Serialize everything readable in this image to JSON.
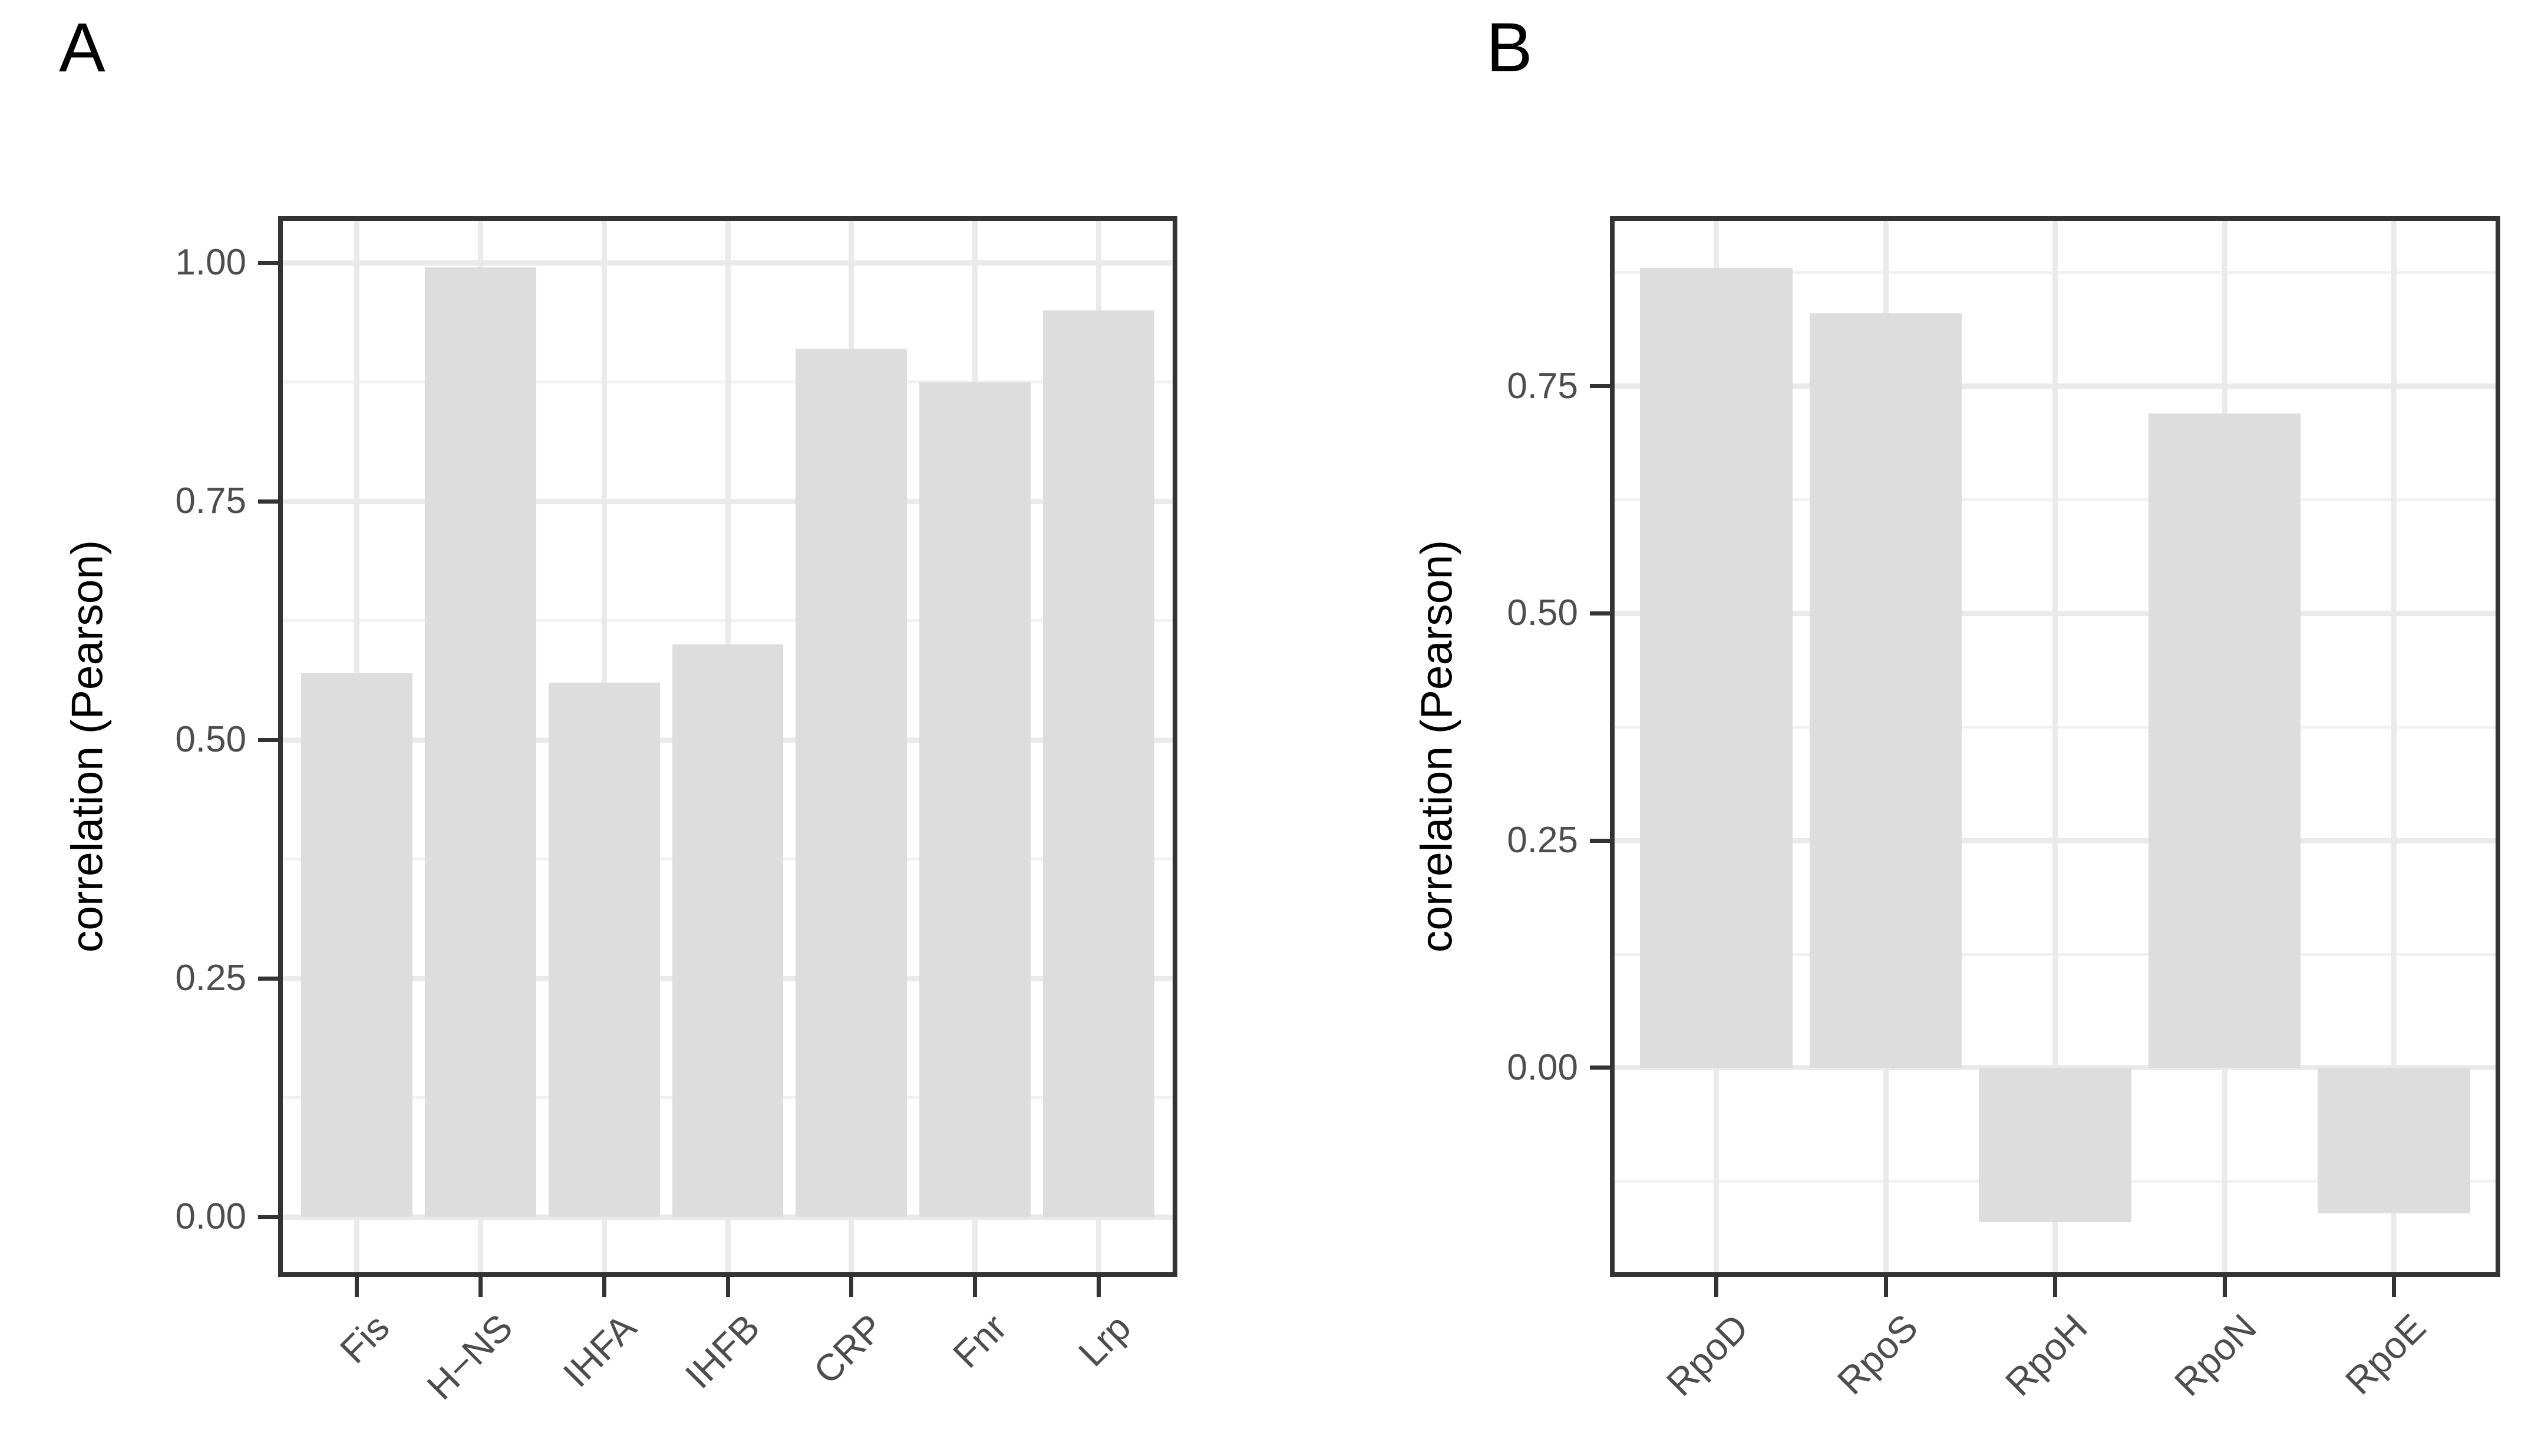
{
  "figure": {
    "background": "#ffffff",
    "description": "Two-panel bar chart of Pearson correlations"
  },
  "colors": {
    "bar_fill": "#dddddd",
    "grid_major": "#eaeaea",
    "grid_minor": "#f1f1f1",
    "panel_border": "#333333",
    "tick_mark": "#333333",
    "tick_label": "#4d4d4d",
    "axis_title": "#000000",
    "panel_letter": "#000000",
    "background": "#ffffff"
  },
  "chart_data": [
    {
      "type": "bar",
      "panel_label": "A",
      "title": "",
      "xlabel": "",
      "ylabel": "correlation (Pearson)",
      "categories": [
        "Fis",
        "H−NS",
        "IHFA",
        "IHFB",
        "CRP",
        "Fnr",
        "Lrp"
      ],
      "values": [
        0.57,
        0.995,
        0.56,
        0.6,
        0.91,
        0.875,
        0.95
      ],
      "ytick_values": [
        1.0,
        0.75,
        0.5,
        0.25,
        0.0
      ],
      "ytick_labels": [
        "1.00",
        "0.75",
        "0.50",
        "0.25",
        "0.00"
      ],
      "ylim": [
        -0.058,
        1.044
      ],
      "grid": true,
      "legend_position": "none",
      "bar_color": "#dddddd",
      "x_label_angle": 45
    },
    {
      "type": "bar",
      "panel_label": "B",
      "title": "",
      "xlabel": "",
      "ylabel": "correlation (Pearson)",
      "categories": [
        "RpoD",
        "RpoS",
        "RpoH",
        "RpoN",
        "RpoE"
      ],
      "values": [
        0.88,
        0.83,
        -0.17,
        0.72,
        -0.16
      ],
      "ytick_values": [
        0.75,
        0.5,
        0.25,
        0.0
      ],
      "ytick_labels": [
        "0.75",
        "0.50",
        "0.25",
        "0.00"
      ],
      "ylim": [
        -0.225,
        0.932
      ],
      "grid": true,
      "legend_position": "none",
      "bar_color": "#dddddd",
      "x_label_angle": 45
    }
  ]
}
